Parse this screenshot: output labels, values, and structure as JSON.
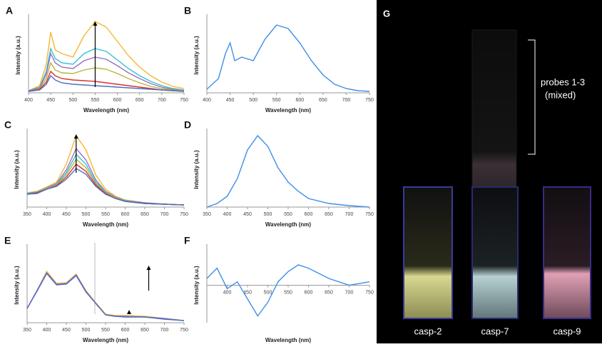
{
  "chart_data": [
    {
      "type": "line",
      "label": "A",
      "xlabel": "Wavelength (nm)",
      "ylabel": "Intensity (a.u.)",
      "x": [
        400,
        425,
        440,
        450,
        460,
        475,
        500,
        525,
        550,
        575,
        600,
        625,
        650,
        675,
        700,
        725,
        750
      ],
      "xlim": [
        400,
        750
      ],
      "xticks": [
        400,
        450,
        500,
        550,
        600,
        650,
        700,
        750
      ],
      "ylim": [
        0,
        105
      ],
      "series": [
        {
          "color": "#f5b731",
          "values": [
            3,
            10,
            40,
            85,
            60,
            55,
            50,
            80,
            100,
            92,
            72,
            52,
            36,
            24,
            15,
            9,
            6
          ]
        },
        {
          "color": "#35c0d8",
          "values": [
            3,
            8,
            30,
            62,
            48,
            42,
            40,
            55,
            62,
            58,
            46,
            34,
            24,
            16,
            10,
            6,
            4
          ]
        },
        {
          "color": "#9b6fc2",
          "values": [
            3,
            7,
            26,
            55,
            42,
            36,
            34,
            45,
            50,
            47,
            38,
            28,
            20,
            13,
            8,
            5,
            3
          ]
        },
        {
          "color": "#b8b53a",
          "values": [
            2,
            6,
            20,
            42,
            32,
            28,
            27,
            32,
            35,
            33,
            27,
            20,
            14,
            9,
            6,
            4,
            3
          ]
        },
        {
          "color": "#d9332a",
          "values": [
            2,
            5,
            15,
            30,
            24,
            20,
            18,
            17,
            16,
            14,
            12,
            10,
            8,
            6,
            4,
            3,
            2
          ]
        },
        {
          "color": "#4a6fc1",
          "values": [
            2,
            4,
            12,
            24,
            18,
            14,
            12,
            11,
            10,
            9,
            8,
            7,
            6,
            5,
            4,
            3,
            2
          ]
        }
      ]
    },
    {
      "type": "line",
      "label": "B",
      "xlabel": "Wavelength (nm)",
      "ylabel": "Intensity (a.u.)",
      "x": [
        400,
        425,
        440,
        450,
        460,
        475,
        500,
        525,
        550,
        575,
        600,
        625,
        650,
        675,
        700,
        725,
        750
      ],
      "xlim": [
        400,
        750
      ],
      "xticks": [
        400,
        450,
        500,
        550,
        600,
        650,
        700,
        750
      ],
      "ylim": [
        0,
        105
      ],
      "series": [
        {
          "color": "#3d8fe8",
          "values": [
            5,
            20,
            55,
            70,
            45,
            50,
            45,
            75,
            95,
            90,
            70,
            45,
            25,
            12,
            6,
            3,
            2
          ]
        }
      ]
    },
    {
      "type": "line",
      "label": "C",
      "xlabel": "Wavelength (nm)",
      "ylabel": "Intensity (a.u.)",
      "x": [
        350,
        375,
        400,
        425,
        450,
        475,
        500,
        525,
        550,
        575,
        600,
        650,
        700,
        750
      ],
      "xlim": [
        350,
        750
      ],
      "xticks": [
        350,
        400,
        450,
        500,
        550,
        600,
        650,
        700,
        750
      ],
      "ylim": [
        0,
        105
      ],
      "series": [
        {
          "color": "#f5b731",
          "values": [
            20,
            22,
            28,
            35,
            60,
            100,
            80,
            45,
            25,
            15,
            10,
            6,
            4,
            3
          ]
        },
        {
          "color": "#9b6fc2",
          "values": [
            19,
            21,
            27,
            33,
            52,
            82,
            66,
            38,
            22,
            14,
            9,
            6,
            4,
            3
          ]
        },
        {
          "color": "#35c0d8",
          "values": [
            19,
            21,
            26,
            32,
            48,
            74,
            60,
            35,
            21,
            13,
            9,
            5,
            4,
            3
          ]
        },
        {
          "color": "#b8b53a",
          "values": [
            18,
            20,
            26,
            31,
            45,
            67,
            55,
            33,
            20,
            13,
            8,
            5,
            4,
            3
          ]
        },
        {
          "color": "#d9332a",
          "values": [
            18,
            20,
            25,
            30,
            42,
            60,
            50,
            31,
            19,
            12,
            8,
            5,
            4,
            3
          ]
        },
        {
          "color": "#4a6fc1",
          "values": [
            18,
            19,
            25,
            29,
            39,
            54,
            46,
            29,
            18,
            12,
            8,
            5,
            4,
            3
          ]
        }
      ]
    },
    {
      "type": "line",
      "label": "D",
      "xlabel": "Wavelength (nm)",
      "ylabel": "Intensity (a.u.)",
      "x": [
        350,
        375,
        400,
        425,
        450,
        475,
        500,
        525,
        550,
        575,
        600,
        650,
        700,
        750
      ],
      "xlim": [
        350,
        750
      ],
      "xticks": [
        350,
        400,
        450,
        500,
        550,
        600,
        650,
        700,
        750
      ],
      "ylim": [
        0,
        105
      ],
      "series": [
        {
          "color": "#3d8fe8",
          "values": [
            0,
            5,
            15,
            40,
            80,
            100,
            85,
            55,
            35,
            22,
            12,
            5,
            2,
            0
          ]
        }
      ]
    },
    {
      "type": "line",
      "label": "E",
      "xlabel": "Wavelength (nm)",
      "ylabel": "Intensity (a.u.)",
      "x": [
        350,
        375,
        400,
        425,
        450,
        475,
        500,
        525,
        550,
        575,
        600,
        650,
        700,
        750
      ],
      "xlim": [
        350,
        750
      ],
      "xticks": [
        350,
        400,
        450,
        500,
        550,
        600,
        650,
        700,
        750
      ],
      "ylim": [
        0,
        105
      ],
      "series": [
        {
          "color": "#f5b731",
          "values": [
            20,
            45,
            72,
            55,
            56,
            68,
            45,
            28,
            12,
            10,
            10,
            9,
            6,
            3
          ]
        },
        {
          "color": "#9b6fc2",
          "values": [
            20,
            45,
            70,
            54,
            55,
            67,
            44,
            27,
            11,
            9,
            9,
            8,
            6,
            3
          ]
        },
        {
          "color": "#4a6fc1",
          "values": [
            20,
            44,
            69,
            53,
            54,
            66,
            43,
            27,
            11,
            9,
            8,
            8,
            5,
            3
          ]
        }
      ]
    },
    {
      "type": "line",
      "label": "F",
      "xlabel": "Wavelength (nm)",
      "ylabel": "Intensity (a.u.)",
      "x": [
        350,
        375,
        400,
        425,
        450,
        475,
        500,
        525,
        550,
        575,
        600,
        650,
        700,
        750
      ],
      "xlim": [
        350,
        750
      ],
      "xticks": [
        400,
        450,
        500,
        550,
        600,
        650,
        700,
        750
      ],
      "ylim": [
        -55,
        55
      ],
      "series": [
        {
          "color": "#3d8fe8",
          "values": [
            10,
            25,
            -5,
            5,
            -20,
            -45,
            -25,
            5,
            20,
            30,
            25,
            10,
            0,
            5
          ]
        }
      ]
    }
  ],
  "photo": {
    "label": "G",
    "bracket_text": [
      "probes 1-3",
      "(mixed)"
    ],
    "captions": [
      "casp-2",
      "casp-7",
      "casp-9"
    ]
  }
}
